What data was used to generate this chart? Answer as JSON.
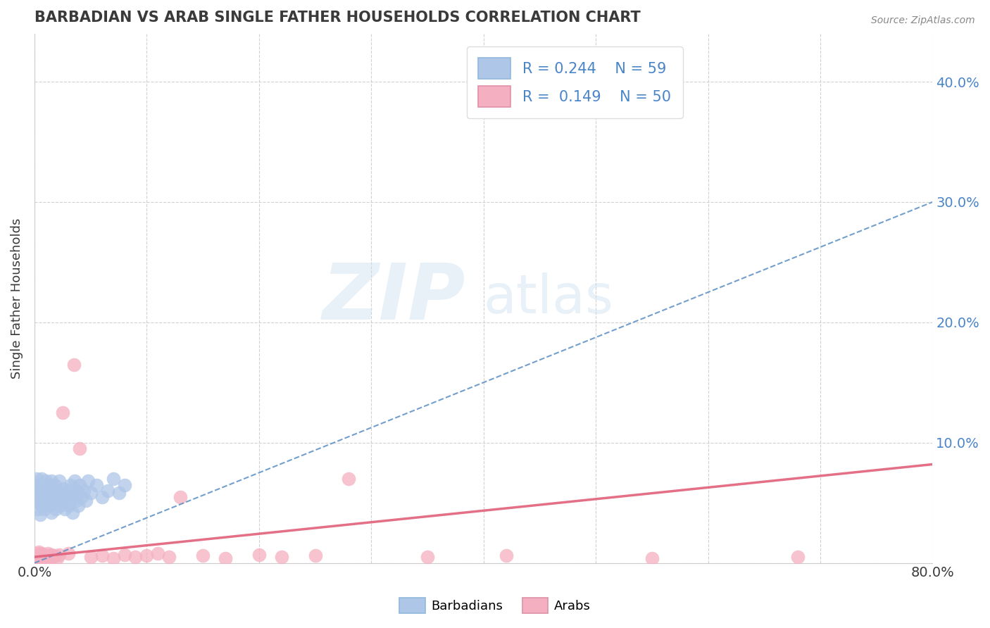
{
  "title": "BARBADIAN VS ARAB SINGLE FATHER HOUSEHOLDS CORRELATION CHART",
  "source": "Source: ZipAtlas.com",
  "ylabel": "Single Father Households",
  "xlim": [
    0.0,
    0.8
  ],
  "ylim": [
    0.0,
    0.44
  ],
  "barbadian_R": 0.244,
  "barbadian_N": 59,
  "arab_R": 0.149,
  "arab_N": 50,
  "barbadian_color": "#aec6e8",
  "arab_color": "#f4afc0",
  "barbadian_line_color": "#5b8ec4",
  "arab_line_color": "#e0607a",
  "watermark_zip": "ZIP",
  "watermark_atlas": "atlas",
  "title_color": "#3a3a3a",
  "legend_R_color": "#4a85c8",
  "background_color": "#ffffff",
  "grid_color": "#cccccc",
  "barbadian_x": [
    0.001,
    0.002,
    0.002,
    0.003,
    0.004,
    0.004,
    0.005,
    0.005,
    0.006,
    0.006,
    0.007,
    0.007,
    0.008,
    0.009,
    0.01,
    0.01,
    0.011,
    0.012,
    0.013,
    0.013,
    0.014,
    0.015,
    0.015,
    0.016,
    0.017,
    0.018,
    0.019,
    0.02,
    0.021,
    0.022,
    0.023,
    0.024,
    0.025,
    0.026,
    0.027,
    0.028,
    0.029,
    0.03,
    0.031,
    0.032,
    0.033,
    0.034,
    0.035,
    0.036,
    0.037,
    0.038,
    0.039,
    0.04,
    0.042,
    0.044,
    0.046,
    0.048,
    0.05,
    0.055,
    0.06,
    0.065,
    0.07,
    0.075,
    0.08
  ],
  "barbadian_y": [
    0.06,
    0.055,
    0.07,
    0.045,
    0.065,
    0.05,
    0.06,
    0.04,
    0.055,
    0.07,
    0.048,
    0.062,
    0.055,
    0.045,
    0.058,
    0.068,
    0.052,
    0.06,
    0.048,
    0.065,
    0.055,
    0.042,
    0.068,
    0.058,
    0.05,
    0.065,
    0.045,
    0.06,
    0.052,
    0.068,
    0.048,
    0.058,
    0.055,
    0.062,
    0.045,
    0.058,
    0.052,
    0.06,
    0.048,
    0.065,
    0.055,
    0.042,
    0.058,
    0.068,
    0.052,
    0.06,
    0.048,
    0.065,
    0.055,
    0.06,
    0.052,
    0.068,
    0.058,
    0.065,
    0.055,
    0.06,
    0.07,
    0.058,
    0.065
  ],
  "arab_x": [
    0.001,
    0.002,
    0.002,
    0.003,
    0.004,
    0.004,
    0.005,
    0.005,
    0.006,
    0.006,
    0.007,
    0.007,
    0.008,
    0.008,
    0.009,
    0.01,
    0.01,
    0.011,
    0.012,
    0.012,
    0.013,
    0.014,
    0.015,
    0.016,
    0.018,
    0.02,
    0.022,
    0.025,
    0.03,
    0.035,
    0.04,
    0.05,
    0.06,
    0.07,
    0.08,
    0.09,
    0.1,
    0.11,
    0.12,
    0.13,
    0.15,
    0.17,
    0.2,
    0.22,
    0.25,
    0.28,
    0.35,
    0.42,
    0.55,
    0.68
  ],
  "arab_y": [
    0.005,
    0.008,
    0.003,
    0.006,
    0.004,
    0.009,
    0.005,
    0.007,
    0.003,
    0.008,
    0.005,
    0.006,
    0.004,
    0.007,
    0.003,
    0.006,
    0.004,
    0.005,
    0.008,
    0.003,
    0.006,
    0.004,
    0.007,
    0.005,
    0.006,
    0.004,
    0.007,
    0.125,
    0.008,
    0.165,
    0.095,
    0.005,
    0.006,
    0.004,
    0.007,
    0.005,
    0.006,
    0.008,
    0.005,
    0.055,
    0.006,
    0.004,
    0.007,
    0.005,
    0.006,
    0.07,
    0.005,
    0.006,
    0.004,
    0.005
  ],
  "barb_trend_x0": 0.0,
  "barb_trend_y0": 0.0,
  "barb_trend_x1": 0.8,
  "barb_trend_y1": 0.3,
  "arab_trend_x0": 0.0,
  "arab_trend_y0": 0.005,
  "arab_trend_x1": 0.8,
  "arab_trend_y1": 0.082
}
